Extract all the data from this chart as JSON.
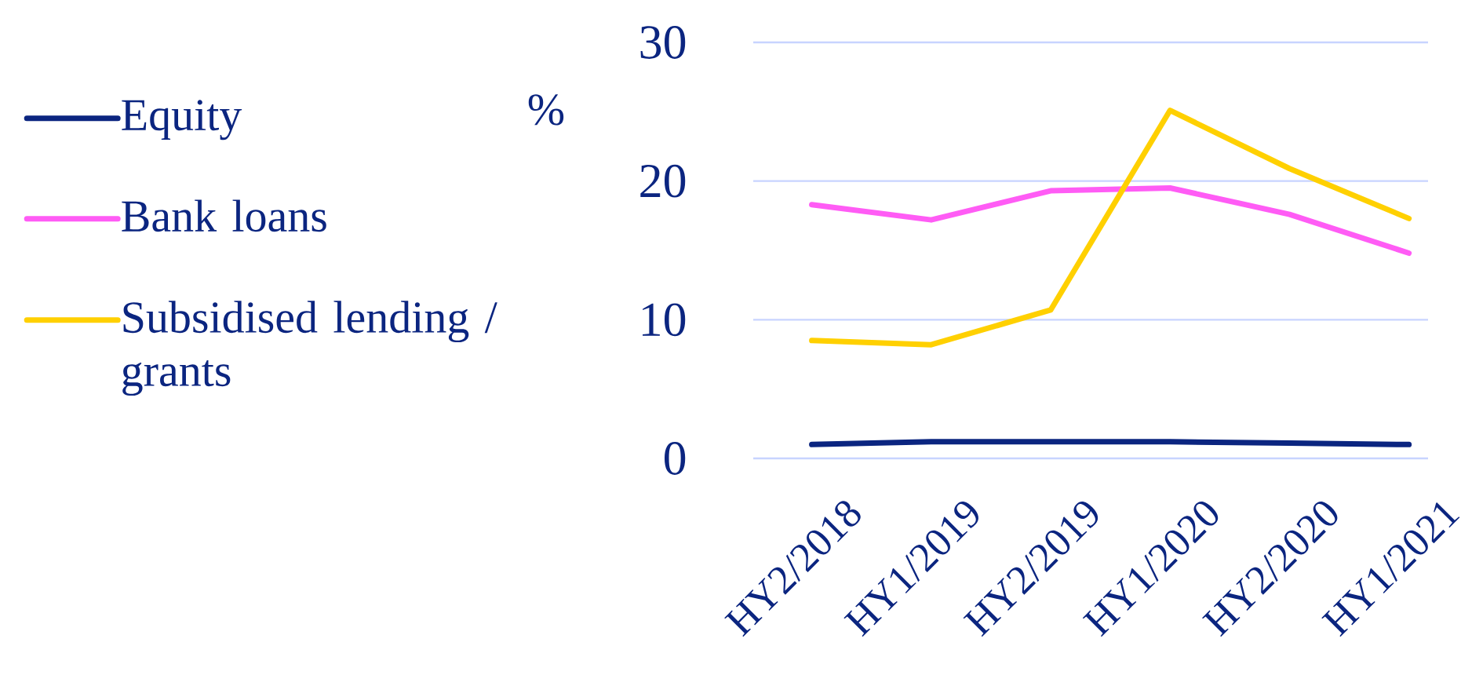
{
  "chart_data": {
    "type": "line",
    "ylabel": "%",
    "categories": [
      "HY2/2018",
      "HY1/2019",
      "HY2/2019",
      "HY1/2020",
      "HY2/2020",
      "HY1/2021"
    ],
    "series": [
      {
        "name": "Equity",
        "color": "#0b2580",
        "values": [
          1.0,
          1.2,
          1.2,
          1.2,
          1.1,
          1.0
        ]
      },
      {
        "name": "Bank loans",
        "color": "#ff5cf5",
        "values": [
          18.3,
          17.2,
          19.3,
          19.5,
          17.6,
          14.8
        ]
      },
      {
        "name": "Subsidised lending / grants",
        "color": "#ffd000",
        "values": [
          8.5,
          8.2,
          10.7,
          25.1,
          20.9,
          17.3
        ]
      }
    ],
    "ylim": [
      0,
      30
    ],
    "yticks": [
      0,
      10,
      20,
      30
    ],
    "grid": "y",
    "legend": "left"
  }
}
